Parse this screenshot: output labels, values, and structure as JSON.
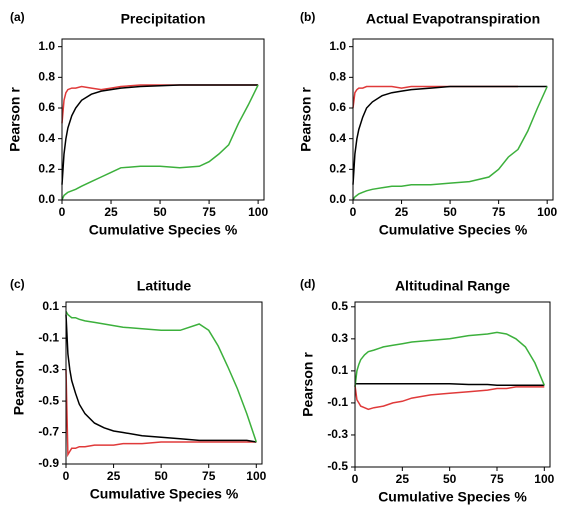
{
  "chart_data": [
    {
      "type": "line",
      "panel": "(a)",
      "title": "Precipitation",
      "x_label": "Cumulative Species %",
      "y_label": "Pearson r",
      "x": [
        0,
        1,
        2,
        3,
        5,
        7,
        10,
        15,
        20,
        25,
        30,
        40,
        50,
        60,
        70,
        75,
        80,
        85,
        90,
        95,
        100
      ],
      "xlim": [
        0,
        103
      ],
      "xticks": [
        0,
        25,
        50,
        75,
        100
      ],
      "ylim": [
        0,
        1.05
      ],
      "yticks": [
        {
          "value": 0,
          "label": "0.0"
        },
        0.2,
        0.4,
        0.6,
        0.8,
        {
          "value": 1,
          "label": "1.0"
        }
      ],
      "series": [
        {
          "color": "#e03a3a",
          "values": [
            0.5,
            0.65,
            0.7,
            0.72,
            0.73,
            0.73,
            0.74,
            0.73,
            0.72,
            0.73,
            0.74,
            0.75,
            0.75,
            0.75,
            0.75,
            0.75,
            0.75,
            0.75,
            0.75,
            0.75,
            0.75
          ]
        },
        {
          "color": "#000000",
          "values": [
            0.1,
            0.3,
            0.4,
            0.47,
            0.55,
            0.6,
            0.65,
            0.69,
            0.71,
            0.72,
            0.73,
            0.74,
            0.745,
            0.75,
            0.75,
            0.75,
            0.75,
            0.75,
            0.75,
            0.75,
            0.75
          ]
        },
        {
          "color": "#3cb03c",
          "values": [
            0,
            0.03,
            0.04,
            0.05,
            0.06,
            0.07,
            0.09,
            0.12,
            0.15,
            0.18,
            0.21,
            0.22,
            0.22,
            0.21,
            0.22,
            0.25,
            0.3,
            0.36,
            0.5,
            0.62,
            0.75
          ]
        }
      ]
    },
    {
      "type": "line",
      "panel": "(b)",
      "title": "Actual Evapotranspiration",
      "x_label": "Cumulative Species %",
      "y_label": "Pearson r",
      "x": [
        0,
        1,
        2,
        3,
        5,
        7,
        10,
        15,
        20,
        25,
        30,
        40,
        50,
        60,
        70,
        75,
        80,
        85,
        90,
        95,
        100
      ],
      "xlim": [
        0,
        103
      ],
      "xticks": [
        0,
        25,
        50,
        75,
        100
      ],
      "ylim": [
        0,
        1.05
      ],
      "yticks": [
        {
          "value": 0,
          "label": "0.0"
        },
        0.2,
        0.4,
        0.6,
        0.8,
        {
          "value": 1,
          "label": "1.0"
        }
      ],
      "series": [
        {
          "color": "#e03a3a",
          "values": [
            0.6,
            0.7,
            0.72,
            0.73,
            0.73,
            0.74,
            0.74,
            0.74,
            0.74,
            0.73,
            0.74,
            0.74,
            0.74,
            0.74,
            0.74,
            0.74,
            0.74,
            0.74,
            null,
            null,
            null
          ]
        },
        {
          "color": "#000000",
          "values": [
            0.1,
            0.3,
            0.4,
            0.46,
            0.54,
            0.6,
            0.64,
            0.68,
            0.7,
            0.71,
            0.72,
            0.73,
            0.74,
            0.74,
            0.74,
            0.74,
            0.74,
            0.74,
            0.74,
            0.74,
            0.74
          ]
        },
        {
          "color": "#3cb03c",
          "values": [
            0,
            0.02,
            0.03,
            0.04,
            0.05,
            0.06,
            0.07,
            0.08,
            0.09,
            0.09,
            0.1,
            0.1,
            0.11,
            0.12,
            0.15,
            0.2,
            0.28,
            0.33,
            0.45,
            0.6,
            0.74
          ]
        }
      ]
    },
    {
      "type": "line",
      "panel": "(c)",
      "title": "Latitude",
      "x_label": "Cumulative Species %",
      "y_label": "Pearson r",
      "x": [
        0,
        1,
        2,
        3,
        5,
        7,
        10,
        15,
        20,
        25,
        30,
        40,
        50,
        60,
        70,
        75,
        80,
        85,
        90,
        95,
        100
      ],
      "xlim": [
        0,
        103
      ],
      "xticks": [
        0,
        25,
        50,
        75,
        100
      ],
      "ylim": [
        -0.9,
        0.13
      ],
      "yticks": [
        0.1,
        -0.1,
        -0.3,
        -0.5,
        -0.7,
        -0.9
      ],
      "series": [
        {
          "color": "#e03a3a",
          "values": [
            -0.3,
            -0.84,
            -0.82,
            -0.8,
            -0.8,
            -0.79,
            -0.79,
            -0.78,
            -0.78,
            -0.78,
            -0.77,
            -0.77,
            -0.76,
            -0.76,
            -0.76,
            -0.76,
            -0.76,
            -0.76,
            -0.76,
            -0.76,
            -0.76
          ]
        },
        {
          "color": "#000000",
          "values": [
            0.05,
            -0.2,
            -0.3,
            -0.37,
            -0.45,
            -0.52,
            -0.58,
            -0.64,
            -0.67,
            -0.69,
            -0.7,
            -0.72,
            -0.73,
            -0.74,
            -0.75,
            -0.75,
            -0.75,
            -0.75,
            -0.75,
            -0.75,
            -0.76
          ]
        },
        {
          "color": "#3cb03c",
          "values": [
            0.07,
            0.05,
            0.04,
            0.03,
            0.03,
            0.02,
            0.01,
            0,
            -0.01,
            -0.02,
            -0.03,
            -0.04,
            -0.05,
            -0.05,
            -0.01,
            -0.05,
            -0.15,
            -0.28,
            -0.42,
            -0.58,
            -0.76
          ]
        }
      ]
    },
    {
      "type": "line",
      "panel": "(d)",
      "title": "Altitudinal Range",
      "x_label": "Cumulative Species %",
      "y_label": "Pearson r",
      "x": [
        0,
        1,
        2,
        3,
        5,
        7,
        10,
        15,
        20,
        25,
        30,
        40,
        50,
        60,
        70,
        75,
        80,
        85,
        90,
        95,
        100
      ],
      "xlim": [
        0,
        103
      ],
      "xticks": [
        0,
        25,
        50,
        75,
        100
      ],
      "ylim": [
        -0.5,
        0.53
      ],
      "yticks": [
        0.5,
        0.3,
        0.1,
        -0.1,
        -0.3,
        -0.5
      ],
      "series": [
        {
          "color": "#e03a3a",
          "values": [
            0.01,
            -0.08,
            -0.1,
            -0.12,
            -0.13,
            -0.14,
            -0.13,
            -0.12,
            -0.1,
            -0.09,
            -0.07,
            -0.05,
            -0.04,
            -0.03,
            -0.02,
            -0.01,
            -0.01,
            0,
            0,
            0,
            0
          ]
        },
        {
          "color": "#000000",
          "values": [
            0.02,
            0.02,
            0.02,
            0.02,
            0.02,
            0.02,
            0.02,
            0.02,
            0.02,
            0.02,
            0.02,
            0.02,
            0.02,
            0.015,
            0.015,
            0.01,
            0.01,
            0.01,
            0.01,
            0.01,
            0.01
          ]
        },
        {
          "color": "#3cb03c",
          "values": [
            0,
            0.1,
            0.14,
            0.17,
            0.2,
            0.22,
            0.23,
            0.25,
            0.26,
            0.27,
            0.28,
            0.29,
            0.3,
            0.32,
            0.33,
            0.34,
            0.33,
            0.3,
            0.25,
            0.15,
            0.01
          ]
        }
      ]
    }
  ]
}
